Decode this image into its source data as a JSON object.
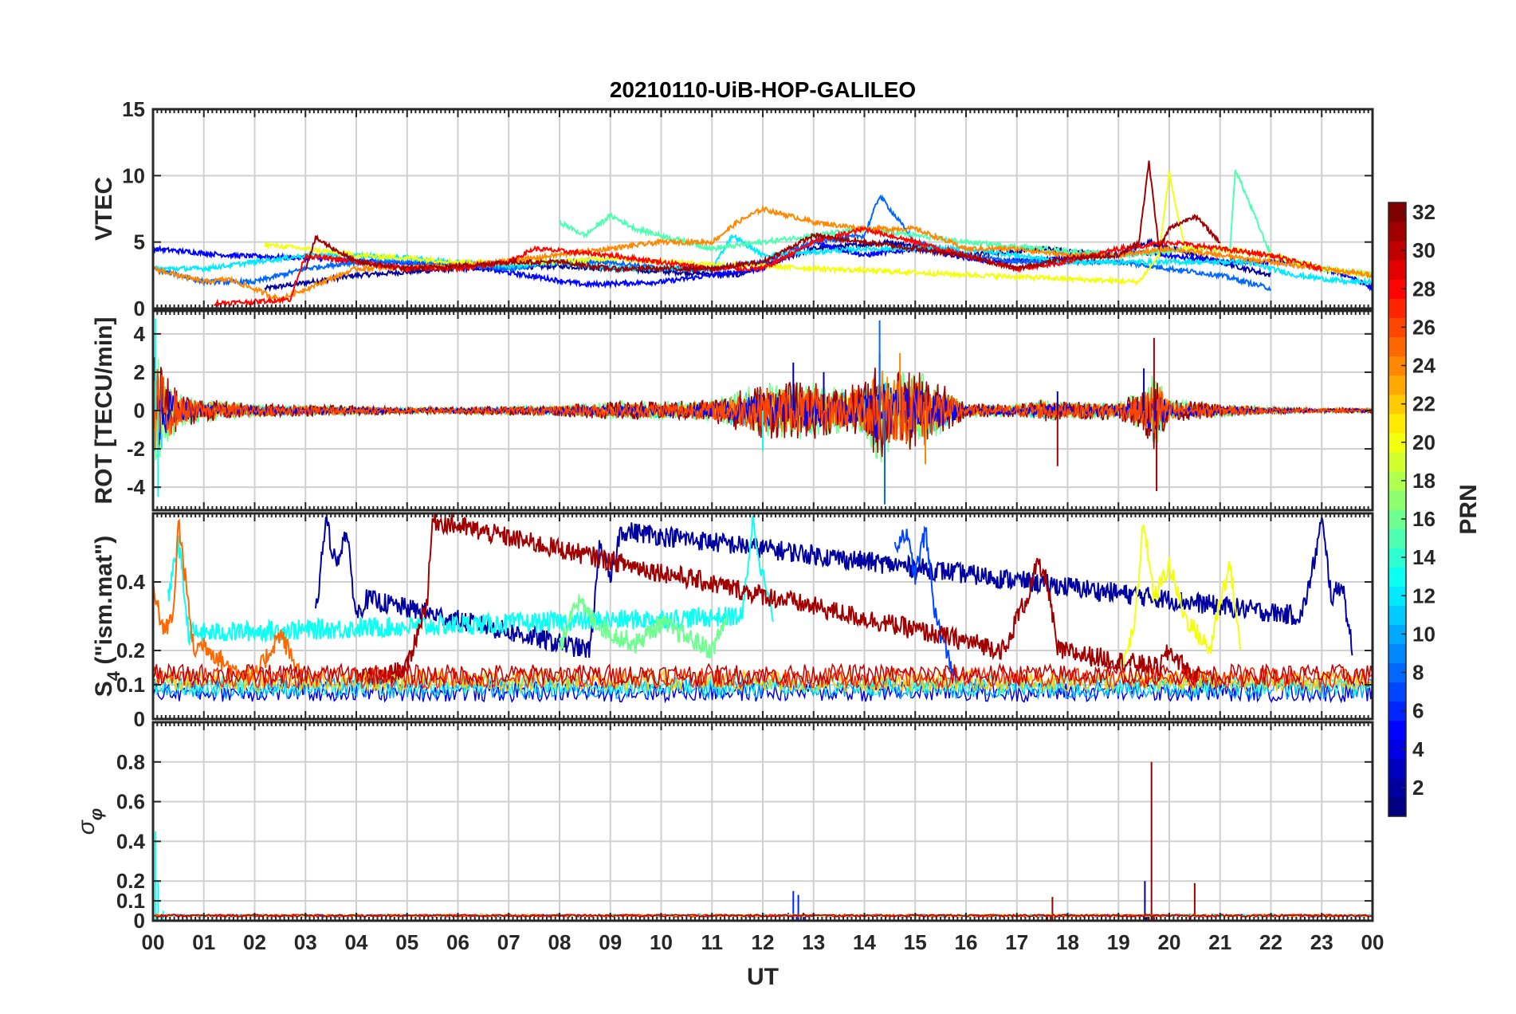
{
  "figure": {
    "title": "20210110-UiB-HOP-GALILEO",
    "xlabel": "UT",
    "x_tick_labels": [
      "00",
      "01",
      "02",
      "03",
      "04",
      "05",
      "06",
      "07",
      "08",
      "09",
      "10",
      "11",
      "12",
      "13",
      "14",
      "15",
      "16",
      "17",
      "18",
      "19",
      "20",
      "21",
      "22",
      "23",
      "00"
    ]
  },
  "colorbar": {
    "label": "PRN",
    "range": [
      1,
      32
    ],
    "ticks": [
      2,
      4,
      6,
      8,
      10,
      12,
      14,
      16,
      18,
      20,
      22,
      24,
      26,
      28,
      30,
      32
    ],
    "colormap": "jet",
    "colors": [
      "#00008f",
      "#0000ff",
      "#0080ff",
      "#00ffff",
      "#80ff80",
      "#ffff00",
      "#ff8000",
      "#ff0000",
      "#800000"
    ]
  },
  "chart_data": [
    {
      "type": "line",
      "panel": "vtec",
      "ylabel": "VTEC",
      "ylim": [
        0,
        15
      ],
      "yticks": [
        0,
        5,
        10,
        15
      ],
      "xlim": [
        0,
        24
      ],
      "grid": true,
      "series": [
        {
          "prn": 2,
          "x": [
            2.2,
            4.0,
            6.0,
            8.0,
            10.0,
            11.5,
            13.0,
            14.5,
            16.0,
            17.5,
            19.0,
            19.6,
            21.0,
            22.0
          ],
          "y": [
            1.5,
            2.5,
            3.0,
            3.2,
            2.8,
            2.5,
            4.5,
            5.0,
            4.0,
            4.5,
            4.0,
            5.0,
            3.5,
            2.5
          ]
        },
        {
          "prn": 5,
          "x": [
            0.0,
            1.5,
            3.0,
            4.5,
            6.0,
            8.5,
            10.0,
            12.0,
            13.0,
            14.0,
            15.0,
            16.5,
            18.0,
            19.5,
            21.0,
            22.5,
            23.5,
            24.0
          ],
          "y": [
            4.5,
            4.0,
            3.8,
            3.5,
            3.3,
            1.8,
            2.0,
            3.0,
            5.0,
            4.0,
            4.5,
            3.5,
            3.8,
            4.2,
            3.5,
            3.5,
            2.5,
            1.5
          ]
        },
        {
          "prn": 8,
          "x": [
            0.0,
            1.0,
            2.0,
            3.0,
            4.0,
            5.0,
            6.0,
            7.0,
            8.0,
            9.0,
            10.0,
            11.0,
            12.0,
            13.0,
            14.0,
            14.3,
            15.0,
            16.0,
            17.0,
            18.0,
            19.0,
            20.0,
            21.0,
            22.0
          ],
          "y": [
            3.0,
            2.0,
            2.0,
            3.0,
            3.5,
            3.5,
            3.3,
            3.0,
            3.5,
            3.5,
            3.0,
            3.0,
            3.5,
            5.0,
            5.5,
            8.5,
            5.0,
            4.0,
            3.5,
            3.5,
            3.5,
            3.0,
            2.5,
            1.5
          ]
        },
        {
          "prn": 12,
          "x": [
            0.0,
            1.0,
            2.0,
            3.0,
            4.0,
            5.0,
            6.0,
            7.0,
            8.0,
            9.0,
            11.0,
            11.4,
            12.0,
            14.0,
            16.0,
            18.0,
            20.0,
            21.5,
            22.5,
            23.5,
            24.0
          ],
          "y": [
            3.0,
            3.0,
            3.5,
            4.0,
            4.0,
            3.8,
            3.5,
            3.2,
            3.5,
            3.0,
            3.0,
            5.5,
            4.0,
            4.5,
            4.5,
            3.5,
            3.5,
            3.5,
            2.5,
            2.0,
            2.0
          ]
        },
        {
          "prn": 15,
          "x": [
            8.0,
            8.5,
            9.0,
            9.5,
            10.0,
            10.5,
            11.0,
            12.0,
            13.0,
            14.0,
            16.0,
            17.5,
            19.0,
            20.5,
            21.2,
            21.3,
            22.0,
            23.0,
            24.0
          ],
          "y": [
            6.5,
            5.5,
            7.0,
            6.0,
            5.5,
            5.0,
            4.5,
            5.0,
            5.5,
            6.0,
            5.0,
            4.5,
            4.0,
            4.5,
            4.5,
            10.5,
            4.0,
            3.0,
            2.5
          ]
        },
        {
          "prn": 20,
          "x": [
            2.2,
            3.0,
            4.0,
            5.0,
            6.0,
            7.0,
            8.0,
            9.0,
            10.0,
            19.4,
            19.8,
            20.0,
            20.3,
            21.0,
            22.0,
            23.0,
            24.0
          ],
          "y": [
            4.8,
            4.5,
            4.0,
            3.8,
            3.5,
            3.5,
            3.5,
            3.8,
            3.5,
            2.0,
            4.0,
            10.2,
            4.5,
            4.5,
            4.0,
            3.0,
            2.5
          ]
        },
        {
          "prn": 24,
          "x": [
            0.0,
            0.5,
            1.0,
            1.5,
            2.5,
            4.0,
            6.0,
            7.5,
            10.0,
            11.0,
            11.5,
            12.0,
            13.0,
            14.0,
            15.0,
            16.0,
            17.0,
            18.0,
            19.0,
            20.0,
            21.0,
            22.0,
            23.0,
            24.0
          ],
          "y": [
            3.0,
            2.5,
            2.0,
            2.2,
            0.7,
            3.0,
            3.2,
            3.8,
            5.0,
            5.0,
            6.5,
            7.5,
            6.5,
            6.0,
            6.0,
            4.5,
            4.5,
            4.0,
            4.0,
            4.5,
            4.0,
            3.5,
            3.0,
            2.5
          ]
        },
        {
          "prn": 28,
          "x": [
            1.2,
            2.0,
            2.7,
            3.0,
            4.0,
            5.0,
            6.0,
            7.0,
            7.5,
            9.0,
            10.0,
            11.0,
            12.0,
            13.0,
            14.0,
            15.0,
            16.0,
            17.0,
            18.0,
            19.0,
            20.0,
            21.0,
            22.0,
            23.0
          ],
          "y": [
            0.4,
            0.5,
            0.7,
            4.0,
            3.5,
            3.0,
            3.0,
            3.5,
            4.5,
            4.0,
            3.5,
            3.0,
            3.0,
            5.0,
            6.0,
            5.0,
            4.0,
            3.0,
            3.5,
            4.5,
            5.0,
            4.5,
            4.0,
            3.0
          ]
        },
        {
          "prn": 31,
          "x": [
            3.0,
            3.2,
            4.0,
            5.0,
            6.0,
            7.0,
            8.0,
            9.0,
            10.0,
            11.0,
            12.0,
            13.0,
            14.0,
            15.0,
            16.0,
            17.0,
            18.0,
            19.0,
            19.4,
            19.6,
            19.8,
            20.0,
            20.5,
            21.0
          ],
          "y": [
            3.0,
            5.3,
            3.5,
            3.0,
            3.2,
            3.5,
            3.5,
            3.0,
            3.0,
            3.0,
            3.5,
            5.5,
            5.0,
            4.5,
            4.0,
            3.0,
            3.8,
            4.0,
            5.0,
            11.0,
            4.5,
            6.0,
            7.0,
            5.0
          ]
        }
      ]
    },
    {
      "type": "line",
      "panel": "rot",
      "ylabel": "ROT [TECU/min]",
      "ylim": [
        -5.2,
        5.2
      ],
      "yticks": [
        -4,
        -2,
        0,
        2,
        4
      ],
      "xlim": [
        0,
        24
      ],
      "grid": true,
      "envelope_x": [
        0,
        0.1,
        0.5,
        1.0,
        2.0,
        3.0,
        4.0,
        5.0,
        6.0,
        7.0,
        8.0,
        9.0,
        10.0,
        11.0,
        11.5,
        12.0,
        12.5,
        13.0,
        13.5,
        14.0,
        14.3,
        14.5,
        15.0,
        15.5,
        16.0,
        17.0,
        17.5,
        18.0,
        19.0,
        19.5,
        19.7,
        20.0,
        21.0,
        22.0,
        23.0,
        24.0
      ],
      "envelope_amp": [
        4.8,
        4.8,
        1.5,
        1.0,
        0.6,
        0.5,
        0.4,
        0.3,
        0.3,
        0.4,
        0.5,
        0.8,
        0.8,
        1.0,
        1.8,
        2.5,
        2.5,
        2.5,
        2.0,
        2.5,
        4.7,
        3.5,
        3.5,
        2.5,
        0.6,
        0.6,
        1.0,
        0.8,
        0.8,
        1.8,
        3.8,
        1.0,
        0.6,
        0.3,
        0.2,
        0.2
      ],
      "series": [
        {
          "prn": 2,
          "x": [
            12.6,
            13.2,
            14.3,
            17.8,
            19.5
          ],
          "y": [
            2.5,
            2.0,
            3.0,
            1.0,
            2.2
          ]
        },
        {
          "prn": 8,
          "x": [
            14.3,
            14.4
          ],
          "y": [
            4.7,
            -4.9
          ]
        },
        {
          "prn": 13,
          "x": [
            0.05,
            0.1,
            12.0
          ],
          "y": [
            4.8,
            -4.5,
            -2.1
          ]
        },
        {
          "prn": 24,
          "x": [
            14.7,
            15.2
          ],
          "y": [
            3.0,
            -2.8
          ]
        },
        {
          "prn": 31,
          "x": [
            17.8,
            19.7,
            19.75
          ],
          "y": [
            -2.9,
            3.8,
            -4.2
          ]
        }
      ]
    },
    {
      "type": "line",
      "panel": "s4",
      "ylabel": "S4 (\"ism.mat\")",
      "ylabel_main": "S",
      "ylabel_sub": "4",
      "ylabel_rest": " (\"ism.mat\")",
      "ylim": [
        0,
        0.6
      ],
      "yticks": [
        0,
        0.1,
        0.2,
        0.4
      ],
      "xlim": [
        0,
        24
      ],
      "grid": true,
      "series": [
        {
          "prn": 2,
          "x": [
            3.2,
            3.4,
            3.6,
            3.8,
            4.0,
            4.2,
            8.6,
            8.8,
            9.0,
            9.2,
            22.6,
            22.8,
            23.0,
            23.2,
            23.4,
            23.6
          ],
          "y": [
            0.3,
            0.58,
            0.45,
            0.55,
            0.3,
            0.35,
            0.2,
            0.52,
            0.4,
            0.55,
            0.3,
            0.42,
            0.58,
            0.35,
            0.4,
            0.2
          ]
        },
        {
          "prn": 7,
          "x": [
            14.6,
            14.8,
            15.0,
            15.2,
            15.4,
            15.6,
            15.8
          ],
          "y": [
            0.5,
            0.55,
            0.42,
            0.55,
            0.3,
            0.2,
            0.12
          ]
        },
        {
          "prn": 13,
          "x": [
            0.3,
            0.5,
            0.7,
            11.6,
            11.8,
            12.0,
            12.2
          ],
          "y": [
            0.35,
            0.52,
            0.25,
            0.3,
            0.58,
            0.42,
            0.3
          ]
        },
        {
          "prn": 16,
          "x": [
            8.0,
            8.3,
            8.6,
            9.0,
            9.5,
            10.0,
            10.5,
            11.0,
            11.3
          ],
          "y": [
            0.2,
            0.35,
            0.3,
            0.25,
            0.22,
            0.28,
            0.24,
            0.2,
            0.3
          ]
        },
        {
          "prn": 20,
          "x": [
            19.0,
            19.3,
            19.5,
            19.7,
            20.0,
            20.3,
            20.8,
            21.0,
            21.2,
            21.4
          ],
          "y": [
            0.15,
            0.25,
            0.58,
            0.35,
            0.45,
            0.3,
            0.2,
            0.35,
            0.45,
            0.2
          ]
        },
        {
          "prn": 25,
          "x": [
            0.0,
            0.2,
            0.4,
            0.5,
            0.8,
            1.0,
            1.5,
            2.0,
            2.5,
            3.0
          ],
          "y": [
            0.4,
            0.25,
            0.3,
            0.58,
            0.2,
            0.22,
            0.15,
            0.12,
            0.25,
            0.1
          ]
        },
        {
          "prn": 31,
          "x": [
            4.0,
            4.5,
            5.0,
            5.2,
            5.4,
            5.5,
            16.8,
            17.0,
            17.2,
            17.4,
            17.6,
            17.8,
            19.8,
            20.0,
            20.5,
            21.0
          ],
          "y": [
            0.12,
            0.12,
            0.15,
            0.25,
            0.35,
            0.58,
            0.2,
            0.3,
            0.35,
            0.45,
            0.4,
            0.2,
            0.15,
            0.2,
            0.12,
            0.1
          ]
        }
      ]
    },
    {
      "type": "line",
      "panel": "sigma_phi",
      "ylabel": "σφ",
      "ylabel_main": "σ",
      "ylabel_sub": "φ",
      "ylim": [
        0,
        1.0
      ],
      "yticks": [
        0,
        0.1,
        0.2,
        0.4,
        0.6,
        0.8
      ],
      "xlim": [
        0,
        24
      ],
      "grid": true,
      "series": [
        {
          "prn": 2,
          "x": [
            19.5,
            19.52,
            19.55
          ],
          "y": [
            0.03,
            0.2,
            0.03
          ]
        },
        {
          "prn": 6,
          "x": [
            12.5,
            12.6,
            12.7,
            12.8
          ],
          "y": [
            0.04,
            0.15,
            0.13,
            0.04
          ]
        },
        {
          "prn": 13,
          "x": [
            0.0,
            0.05,
            0.1,
            0.2
          ],
          "y": [
            0.05,
            0.45,
            0.2,
            0.05
          ]
        },
        {
          "prn": 31,
          "x": [
            17.6,
            17.7,
            19.6,
            19.65,
            19.7,
            20.4,
            20.5
          ],
          "y": [
            0.03,
            0.12,
            0.03,
            0.8,
            0.03,
            0.03,
            0.19
          ]
        }
      ]
    }
  ]
}
